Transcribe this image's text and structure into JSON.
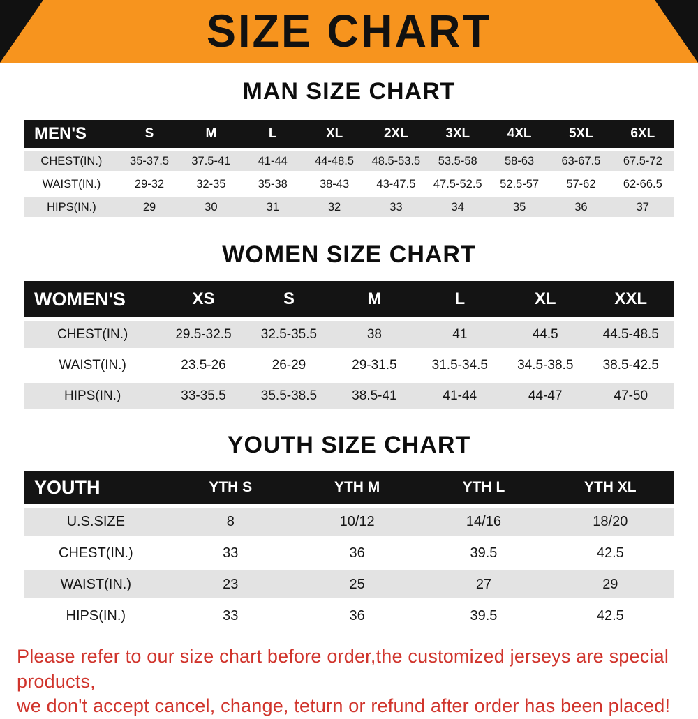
{
  "banner": {
    "title": "SIZE CHART",
    "bg_color": "#F7941E",
    "triangle_color": "#111111"
  },
  "sections": {
    "men": {
      "heading": "MAN SIZE CHART",
      "table": {
        "header": [
          "MEN'S",
          "S",
          "M",
          "L",
          "XL",
          "2XL",
          "3XL",
          "4XL",
          "5XL",
          "6XL"
        ],
        "rows": [
          {
            "label": "CHEST(IN.)",
            "values": [
              "35-37.5",
              "37.5-41",
              "41-44",
              "44-48.5",
              "48.5-53.5",
              "53.5-58",
              "58-63",
              "63-67.5",
              "67.5-72"
            ]
          },
          {
            "label": "WAIST(IN.)",
            "values": [
              "29-32",
              "32-35",
              "35-38",
              "38-43",
              "43-47.5",
              "47.5-52.5",
              "52.5-57",
              "57-62",
              "62-66.5"
            ]
          },
          {
            "label": "HIPS(IN.)",
            "values": [
              "29",
              "30",
              "31",
              "32",
              "33",
              "34",
              "35",
              "36",
              "37"
            ]
          }
        ]
      }
    },
    "women": {
      "heading": "WOMEN SIZE CHART",
      "table": {
        "header": [
          "WOMEN'S",
          "XS",
          "S",
          "M",
          "L",
          "XL",
          "XXL"
        ],
        "rows": [
          {
            "label": "CHEST(IN.)",
            "values": [
              "29.5-32.5",
              "32.5-35.5",
              "38",
              "41",
              "44.5",
              "44.5-48.5"
            ]
          },
          {
            "label": "WAIST(IN.)",
            "values": [
              "23.5-26",
              "26-29",
              "29-31.5",
              "31.5-34.5",
              "34.5-38.5",
              "38.5-42.5"
            ]
          },
          {
            "label": "HIPS(IN.)",
            "values": [
              "33-35.5",
              "35.5-38.5",
              "38.5-41",
              "41-44",
              "44-47",
              "47-50"
            ]
          }
        ]
      }
    },
    "youth": {
      "heading": "YOUTH SIZE CHART",
      "table": {
        "header": [
          "YOUTH",
          "YTH S",
          "YTH M",
          "YTH L",
          "YTH XL"
        ],
        "rows": [
          {
            "label": "U.S.SIZE",
            "values": [
              "8",
              "10/12",
              "14/16",
              "18/20"
            ]
          },
          {
            "label": "CHEST(IN.)",
            "values": [
              "33",
              "36",
              "39.5",
              "42.5"
            ]
          },
          {
            "label": "WAIST(IN.)",
            "values": [
              "23",
              "25",
              "27",
              "29"
            ]
          },
          {
            "label": "HIPS(IN.)",
            "values": [
              "33",
              "36",
              "39.5",
              "42.5"
            ]
          }
        ]
      }
    }
  },
  "disclaimer": {
    "line1": "Please refer to our size chart before order,the customized jerseys are special products,",
    "line2": "we don't accept cancel, change, teturn or refund after order has been placed!",
    "color": "#D0342C"
  },
  "row_stripe_color": "#E3E3E3",
  "header_bg_color": "#141414"
}
